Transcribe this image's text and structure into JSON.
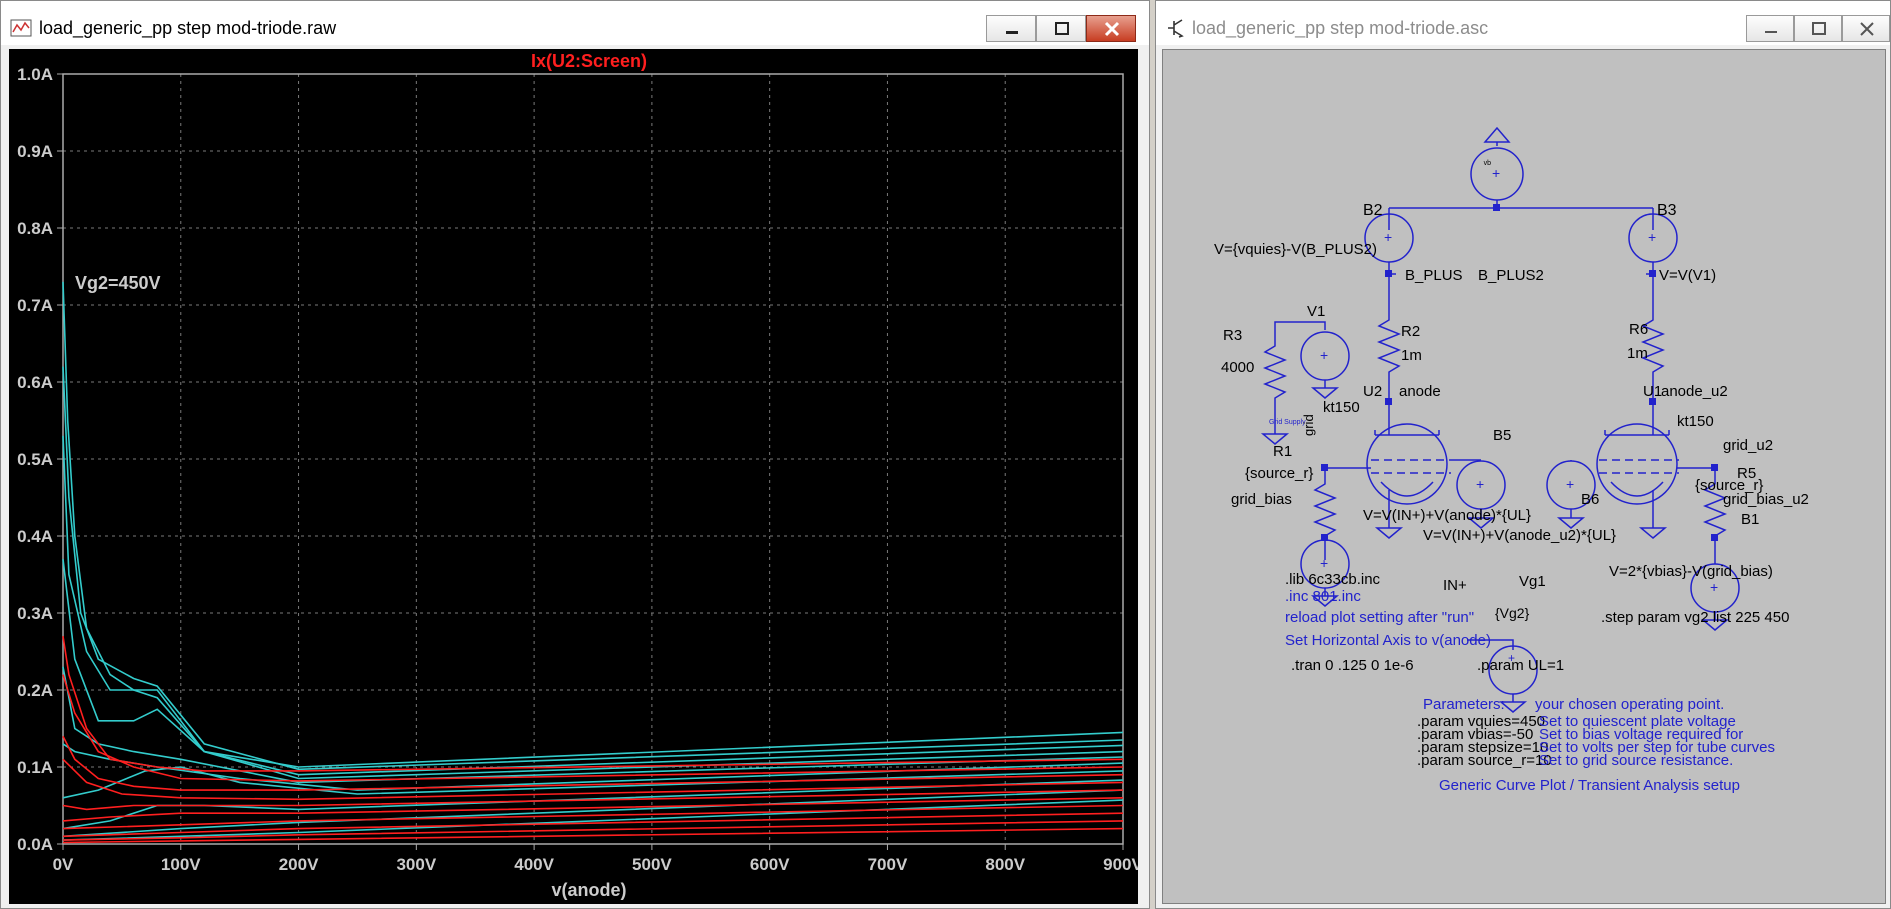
{
  "plot_window": {
    "title": "load_generic_pp step mod-triode.raw",
    "trace_name": "Ix(U2:Screen)",
    "step_label": "Vg2=450V",
    "x_label": "v(anode)",
    "y_ticks": [
      "0.0A",
      "0.1A",
      "0.2A",
      "0.3A",
      "0.4A",
      "0.5A",
      "0.6A",
      "0.7A",
      "0.8A",
      "0.9A",
      "1.0A"
    ],
    "x_ticks": [
      "0V",
      "100V",
      "200V",
      "300V",
      "400V",
      "500V",
      "600V",
      "700V",
      "800V",
      "900V"
    ],
    "colors": {
      "cyan": "#33cccc",
      "red": "#ff1f1f",
      "grid": "#7a7a7a",
      "label": "#cccccc"
    }
  },
  "chart_data": {
    "type": "line",
    "title": "Ix(U2:Screen)",
    "xlabel": "v(anode)",
    "ylabel": "",
    "xlim": [
      0,
      900
    ],
    "ylim": [
      0,
      1.0
    ],
    "grid": true,
    "annotations": [
      "Vg2=450V"
    ],
    "series": [
      {
        "color": "#33cccc",
        "points": [
          [
            0,
            0.73
          ],
          [
            4,
            0.55
          ],
          [
            10,
            0.4
          ],
          [
            20,
            0.28
          ],
          [
            40,
            0.22
          ],
          [
            60,
            0.2
          ],
          [
            80,
            0.19
          ],
          [
            120,
            0.12
          ],
          [
            200,
            0.1
          ],
          [
            900,
            0.145
          ]
        ]
      },
      {
        "color": "#33cccc",
        "points": [
          [
            0,
            0.62
          ],
          [
            5,
            0.45
          ],
          [
            15,
            0.3
          ],
          [
            30,
            0.24
          ],
          [
            60,
            0.215
          ],
          [
            80,
            0.205
          ],
          [
            120,
            0.13
          ],
          [
            200,
            0.097
          ],
          [
            900,
            0.135
          ]
        ]
      },
      {
        "color": "#33cccc",
        "points": [
          [
            0,
            0.53
          ],
          [
            5,
            0.35
          ],
          [
            20,
            0.25
          ],
          [
            40,
            0.2
          ],
          [
            80,
            0.2
          ],
          [
            120,
            0.12
          ],
          [
            200,
            0.09
          ],
          [
            900,
            0.128
          ]
        ]
      },
      {
        "color": "#33cccc",
        "points": [
          [
            0,
            0.37
          ],
          [
            10,
            0.24
          ],
          [
            30,
            0.16
          ],
          [
            60,
            0.16
          ],
          [
            80,
            0.175
          ],
          [
            120,
            0.12
          ],
          [
            200,
            0.085
          ],
          [
            900,
            0.12
          ]
        ]
      },
      {
        "color": "#33cccc",
        "points": [
          [
            0,
            0.23
          ],
          [
            10,
            0.15
          ],
          [
            30,
            0.13
          ],
          [
            60,
            0.12
          ],
          [
            100,
            0.11
          ],
          [
            200,
            0.08
          ],
          [
            900,
            0.113
          ]
        ]
      },
      {
        "color": "#33cccc",
        "points": [
          [
            0,
            0.13
          ],
          [
            10,
            0.12
          ],
          [
            40,
            0.11
          ],
          [
            80,
            0.1
          ],
          [
            150,
            0.085
          ],
          [
            250,
            0.07
          ],
          [
            900,
            0.105
          ]
        ]
      },
      {
        "color": "#33cccc",
        "points": [
          [
            0,
            0.06
          ],
          [
            30,
            0.07
          ],
          [
            70,
            0.095
          ],
          [
            100,
            0.1
          ],
          [
            150,
            0.08
          ],
          [
            250,
            0.065
          ],
          [
            900,
            0.095
          ]
        ]
      },
      {
        "color": "#33cccc",
        "points": [
          [
            0,
            0.02
          ],
          [
            40,
            0.03
          ],
          [
            80,
            0.05
          ],
          [
            120,
            0.05
          ],
          [
            200,
            0.045
          ],
          [
            900,
            0.083
          ]
        ]
      },
      {
        "color": "#33cccc",
        "points": [
          [
            0,
            0.01
          ],
          [
            100,
            0.02
          ],
          [
            200,
            0.028
          ],
          [
            900,
            0.07
          ]
        ]
      },
      {
        "color": "#33cccc",
        "points": [
          [
            0,
            0.005
          ],
          [
            100,
            0.01
          ],
          [
            200,
            0.015
          ],
          [
            900,
            0.057
          ]
        ]
      },
      {
        "color": "#ff1f1f",
        "points": [
          [
            0,
            0.27
          ],
          [
            5,
            0.22
          ],
          [
            20,
            0.15
          ],
          [
            40,
            0.11
          ],
          [
            80,
            0.1
          ],
          [
            120,
            0.095
          ],
          [
            200,
            0.095
          ],
          [
            900,
            0.11
          ]
        ]
      },
      {
        "color": "#ff1f1f",
        "points": [
          [
            0,
            0.22
          ],
          [
            10,
            0.17
          ],
          [
            30,
            0.12
          ],
          [
            60,
            0.1
          ],
          [
            100,
            0.085
          ],
          [
            200,
            0.082
          ],
          [
            900,
            0.1
          ]
        ]
      },
      {
        "color": "#ff1f1f",
        "points": [
          [
            0,
            0.14
          ],
          [
            10,
            0.11
          ],
          [
            30,
            0.085
          ],
          [
            60,
            0.075
          ],
          [
            100,
            0.07
          ],
          [
            200,
            0.07
          ],
          [
            900,
            0.09
          ]
        ]
      },
      {
        "color": "#ff1f1f",
        "points": [
          [
            0,
            0.11
          ],
          [
            20,
            0.08
          ],
          [
            50,
            0.065
          ],
          [
            100,
            0.06
          ],
          [
            200,
            0.058
          ],
          [
            900,
            0.08
          ]
        ]
      },
      {
        "color": "#ff1f1f",
        "points": [
          [
            0,
            0.05
          ],
          [
            20,
            0.045
          ],
          [
            60,
            0.05
          ],
          [
            100,
            0.05
          ],
          [
            200,
            0.05
          ],
          [
            900,
            0.07
          ]
        ]
      },
      {
        "color": "#ff1f1f",
        "points": [
          [
            0,
            0.03
          ],
          [
            40,
            0.035
          ],
          [
            100,
            0.04
          ],
          [
            200,
            0.04
          ],
          [
            900,
            0.06
          ]
        ]
      },
      {
        "color": "#ff1f1f",
        "points": [
          [
            0,
            0.02
          ],
          [
            100,
            0.025
          ],
          [
            200,
            0.03
          ],
          [
            900,
            0.05
          ]
        ]
      },
      {
        "color": "#ff1f1f",
        "points": [
          [
            0,
            0.01
          ],
          [
            100,
            0.015
          ],
          [
            200,
            0.02
          ],
          [
            900,
            0.04
          ]
        ]
      },
      {
        "color": "#ff1f1f",
        "points": [
          [
            0,
            0.005
          ],
          [
            100,
            0.008
          ],
          [
            200,
            0.012
          ],
          [
            900,
            0.03
          ]
        ]
      },
      {
        "color": "#ff1f1f",
        "points": [
          [
            0,
            0.002
          ],
          [
            100,
            0.004
          ],
          [
            200,
            0.006
          ],
          [
            900,
            0.02
          ]
        ]
      }
    ]
  },
  "schematic_window": {
    "title": "load_generic_pp step mod-triode.asc",
    "labels": {
      "b2": "B2",
      "b3": "B3",
      "b5": "B5",
      "b6": "B6",
      "b1": "B1",
      "b2_expr": "V={vquies}-V(B_PLUS2)",
      "b3_expr": "V=V(V1)",
      "b_plus": "B_PLUS",
      "b_plus2": "B_PLUS2",
      "r3": "R3",
      "r3_val": "4000",
      "v1": "V1",
      "r2": "R2",
      "r2_val": "1m",
      "r6": "R6",
      "r6_val": "1m",
      "anode": "anode",
      "anode_u2": "anode_u2",
      "u2": "U2",
      "u1": "U1",
      "kt150_a": "kt150",
      "kt150_b": "kt150",
      "grid_supply": "Grid Supply",
      "grid": "grid",
      "r1": "R1",
      "source_r_a": "{source_r}",
      "grid_bias": "grid_bias",
      "b5_expr": "V=V(IN+)+V(anode)*{UL}",
      "b6_expr": "V=V(IN+)+V(anode_u2)*{UL}",
      "grid_u2": "grid_u2",
      "r5": "R5",
      "source_r_b": "{source_r}",
      "grid_bias_u2": "grid_bias_u2",
      "b1_expr": "V=2*{vbias}-V(grid_bias)",
      "vb_label": "vb",
      "lib_line": ".lib 6c33cb.inc",
      "inc_line": ".inc 801.inc",
      "reload_note": "reload plot setting after \"run\"",
      "horiz_note": "Set Horizontal Axis to v(anode)",
      "tran_line": ".tran 0 .125 0 1e-6",
      "in_plus": "IN+",
      "vg1": "Vg1",
      "vg2_val": "{Vg2}",
      "step_line": ".step param vg2 list 225 450",
      "param_ul": ".param UL=1",
      "parameters_hdr": "Parameters:",
      "op_point_hdr": "your chosen operating point.",
      "param_vquies": ".param vquies=450",
      "param_vbias": ".param vbias=-50",
      "param_stepsize": ".param stepsize=10",
      "param_source_r": ".param source_r=10",
      "note_vquies": "Set to quiescent plate voltage",
      "note_vbias": "Set to bias voltage required for",
      "note_stepsize": "Set to volts per step for tube curves",
      "note_source_r": "Set to grid source resistance.",
      "footer": "Generic Curve Plot / Transient Analysis setup"
    }
  }
}
